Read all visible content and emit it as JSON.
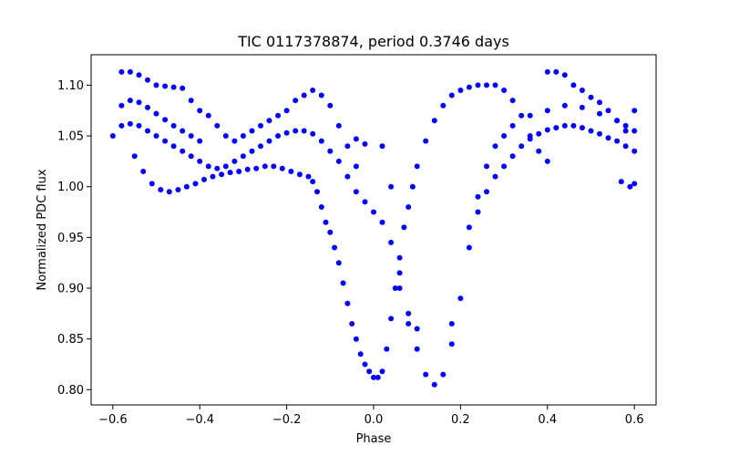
{
  "chart_data": {
    "type": "scatter",
    "title": "TIC 0117378874, period 0.3746 days",
    "xlabel": "Phase",
    "ylabel": "Normalized PDC flux",
    "xlim": [
      -0.65,
      0.65
    ],
    "ylim": [
      0.785,
      1.13
    ],
    "xticks": [
      -0.6,
      -0.4,
      -0.2,
      0.0,
      0.2,
      0.4,
      0.6
    ],
    "xtick_labels": [
      "−0.6",
      "−0.4",
      "−0.2",
      "0.0",
      "0.2",
      "0.4",
      "0.6"
    ],
    "yticks": [
      0.8,
      0.85,
      0.9,
      0.95,
      1.0,
      1.05,
      1.1
    ],
    "ytick_labels": [
      "0.80",
      "0.85",
      "0.90",
      "0.95",
      "1.00",
      "1.05",
      "1.10"
    ],
    "grid": false,
    "marker_color": "#0000ff",
    "series": [
      {
        "name": "",
        "note_envelope": "main light curve band",
        "points": [
          [
            -0.6,
            1.05
          ],
          [
            -0.58,
            1.06
          ],
          [
            -0.56,
            1.062
          ],
          [
            -0.54,
            1.06
          ],
          [
            -0.52,
            1.055
          ],
          [
            -0.5,
            1.05
          ],
          [
            -0.48,
            1.045
          ],
          [
            -0.46,
            1.04
          ],
          [
            -0.44,
            1.035
          ],
          [
            -0.42,
            1.03
          ],
          [
            -0.4,
            1.025
          ],
          [
            -0.38,
            1.02
          ],
          [
            -0.36,
            1.018
          ],
          [
            -0.34,
            1.02
          ],
          [
            -0.32,
            1.025
          ],
          [
            -0.3,
            1.03
          ],
          [
            -0.28,
            1.035
          ],
          [
            -0.26,
            1.04
          ],
          [
            -0.24,
            1.045
          ],
          [
            -0.22,
            1.05
          ],
          [
            -0.2,
            1.053
          ],
          [
            -0.18,
            1.055
          ],
          [
            -0.16,
            1.055
          ],
          [
            -0.14,
            1.052
          ],
          [
            -0.12,
            1.045
          ],
          [
            -0.1,
            1.035
          ],
          [
            -0.08,
            1.025
          ],
          [
            -0.06,
            1.01
          ],
          [
            -0.04,
            0.995
          ],
          [
            -0.02,
            0.985
          ],
          [
            0.0,
            0.975
          ],
          [
            0.02,
            0.965
          ],
          [
            0.04,
            0.945
          ],
          [
            0.06,
            0.915
          ],
          [
            0.08,
            0.875
          ],
          [
            0.1,
            0.84
          ],
          [
            0.12,
            0.815
          ],
          [
            0.14,
            0.805
          ],
          [
            0.16,
            0.815
          ],
          [
            0.18,
            0.845
          ],
          [
            0.2,
            0.89
          ],
          [
            0.22,
            0.94
          ],
          [
            0.24,
            0.975
          ],
          [
            0.26,
            0.995
          ],
          [
            0.28,
            1.01
          ],
          [
            0.3,
            1.02
          ],
          [
            0.32,
            1.03
          ],
          [
            0.34,
            1.04
          ],
          [
            0.36,
            1.047
          ],
          [
            0.38,
            1.052
          ],
          [
            0.4,
            1.056
          ],
          [
            0.42,
            1.058
          ],
          [
            0.44,
            1.06
          ],
          [
            0.46,
            1.06
          ],
          [
            0.48,
            1.058
          ],
          [
            0.5,
            1.055
          ],
          [
            0.52,
            1.052
          ],
          [
            0.54,
            1.048
          ],
          [
            0.56,
            1.045
          ],
          [
            0.58,
            1.04
          ],
          [
            0.6,
            1.035
          ]
        ]
      },
      {
        "name": "",
        "points": [
          [
            -0.55,
            1.03
          ],
          [
            -0.53,
            1.015
          ],
          [
            -0.51,
            1.003
          ],
          [
            -0.49,
            0.997
          ],
          [
            -0.47,
            0.995
          ],
          [
            -0.45,
            0.997
          ],
          [
            -0.43,
            1.0
          ],
          [
            -0.41,
            1.003
          ],
          [
            -0.39,
            1.007
          ],
          [
            -0.37,
            1.01
          ],
          [
            -0.35,
            1.012
          ],
          [
            -0.33,
            1.014
          ],
          [
            -0.31,
            1.015
          ],
          [
            -0.29,
            1.017
          ],
          [
            -0.27,
            1.018
          ],
          [
            -0.25,
            1.02
          ],
          [
            -0.23,
            1.02
          ],
          [
            -0.21,
            1.018
          ],
          [
            -0.19,
            1.015
          ],
          [
            -0.17,
            1.012
          ],
          [
            -0.15,
            1.01
          ],
          [
            -0.14,
            1.005
          ],
          [
            -0.13,
            0.995
          ],
          [
            -0.12,
            0.98
          ],
          [
            -0.11,
            0.965
          ],
          [
            -0.1,
            0.955
          ],
          [
            -0.09,
            0.94
          ],
          [
            -0.08,
            0.925
          ],
          [
            -0.07,
            0.905
          ],
          [
            -0.06,
            0.885
          ],
          [
            -0.05,
            0.865
          ],
          [
            -0.04,
            0.85
          ],
          [
            -0.03,
            0.835
          ],
          [
            -0.02,
            0.825
          ],
          [
            -0.01,
            0.818
          ],
          [
            0.0,
            0.812
          ],
          [
            0.01,
            0.812
          ],
          [
            0.02,
            0.818
          ],
          [
            0.03,
            0.84
          ],
          [
            0.04,
            0.87
          ],
          [
            0.05,
            0.9
          ],
          [
            0.06,
            0.93
          ],
          [
            0.07,
            0.96
          ],
          [
            0.08,
            0.98
          ],
          [
            0.09,
            1.0
          ],
          [
            0.1,
            1.02
          ],
          [
            0.12,
            1.045
          ],
          [
            0.14,
            1.065
          ],
          [
            0.16,
            1.08
          ],
          [
            0.18,
            1.09
          ],
          [
            0.2,
            1.095
          ],
          [
            0.22,
            1.098
          ],
          [
            0.24,
            1.1
          ],
          [
            0.26,
            1.1
          ],
          [
            0.28,
            1.1
          ],
          [
            0.3,
            1.095
          ],
          [
            0.32,
            1.085
          ],
          [
            0.34,
            1.07
          ],
          [
            0.36,
            1.05
          ],
          [
            0.38,
            1.035
          ],
          [
            0.4,
            1.025
          ]
        ]
      },
      {
        "name": "",
        "points": [
          [
            -0.58,
            1.08
          ],
          [
            -0.56,
            1.085
          ],
          [
            -0.54,
            1.083
          ],
          [
            -0.52,
            1.078
          ],
          [
            -0.5,
            1.072
          ],
          [
            -0.48,
            1.066
          ],
          [
            -0.46,
            1.06
          ],
          [
            -0.44,
            1.055
          ],
          [
            -0.42,
            1.05
          ],
          [
            -0.4,
            1.045
          ],
          [
            -0.3,
            1.05
          ],
          [
            -0.28,
            1.055
          ],
          [
            -0.26,
            1.06
          ],
          [
            -0.24,
            1.065
          ],
          [
            -0.22,
            1.07
          ],
          [
            -0.2,
            1.075
          ],
          [
            -0.18,
            1.085
          ],
          [
            -0.16,
            1.09
          ],
          [
            -0.14,
            1.095
          ],
          [
            -0.12,
            1.09
          ],
          [
            -0.1,
            1.08
          ],
          [
            -0.08,
            1.06
          ],
          [
            -0.06,
            1.04
          ],
          [
            -0.04,
            1.02
          ],
          [
            0.22,
            0.96
          ],
          [
            0.24,
            0.99
          ],
          [
            0.26,
            1.02
          ],
          [
            0.28,
            1.04
          ],
          [
            0.3,
            1.05
          ],
          [
            0.32,
            1.06
          ],
          [
            0.36,
            1.07
          ],
          [
            0.4,
            1.075
          ],
          [
            0.44,
            1.08
          ],
          [
            0.48,
            1.078
          ],
          [
            0.52,
            1.072
          ],
          [
            0.56,
            1.065
          ],
          [
            0.58,
            1.06
          ],
          [
            0.6,
            1.055
          ]
        ]
      },
      {
        "name": "",
        "points": [
          [
            -0.58,
            1.113
          ],
          [
            -0.56,
            1.113
          ],
          [
            -0.54,
            1.11
          ],
          [
            -0.52,
            1.105
          ],
          [
            -0.5,
            1.1
          ],
          [
            -0.48,
            1.099
          ],
          [
            -0.46,
            1.098
          ],
          [
            -0.44,
            1.097
          ],
          [
            -0.42,
            1.085
          ],
          [
            -0.4,
            1.075
          ],
          [
            -0.38,
            1.07
          ],
          [
            -0.36,
            1.06
          ],
          [
            -0.34,
            1.05
          ],
          [
            -0.32,
            1.045
          ],
          [
            -0.04,
            1.047
          ],
          [
            -0.02,
            1.042
          ],
          [
            0.02,
            1.04
          ],
          [
            0.04,
            1.0
          ],
          [
            0.06,
            0.9
          ],
          [
            0.08,
            0.865
          ],
          [
            0.1,
            0.86
          ],
          [
            0.18,
            0.865
          ],
          [
            0.4,
            1.113
          ],
          [
            0.42,
            1.113
          ],
          [
            0.44,
            1.11
          ],
          [
            0.46,
            1.1
          ],
          [
            0.48,
            1.095
          ],
          [
            0.5,
            1.088
          ],
          [
            0.52,
            1.083
          ],
          [
            0.54,
            1.075
          ],
          [
            0.56,
            1.065
          ],
          [
            0.58,
            1.055
          ],
          [
            0.6,
            1.075
          ],
          [
            0.57,
            1.005
          ],
          [
            0.59,
            1.0
          ],
          [
            0.6,
            1.003
          ]
        ]
      }
    ]
  }
}
